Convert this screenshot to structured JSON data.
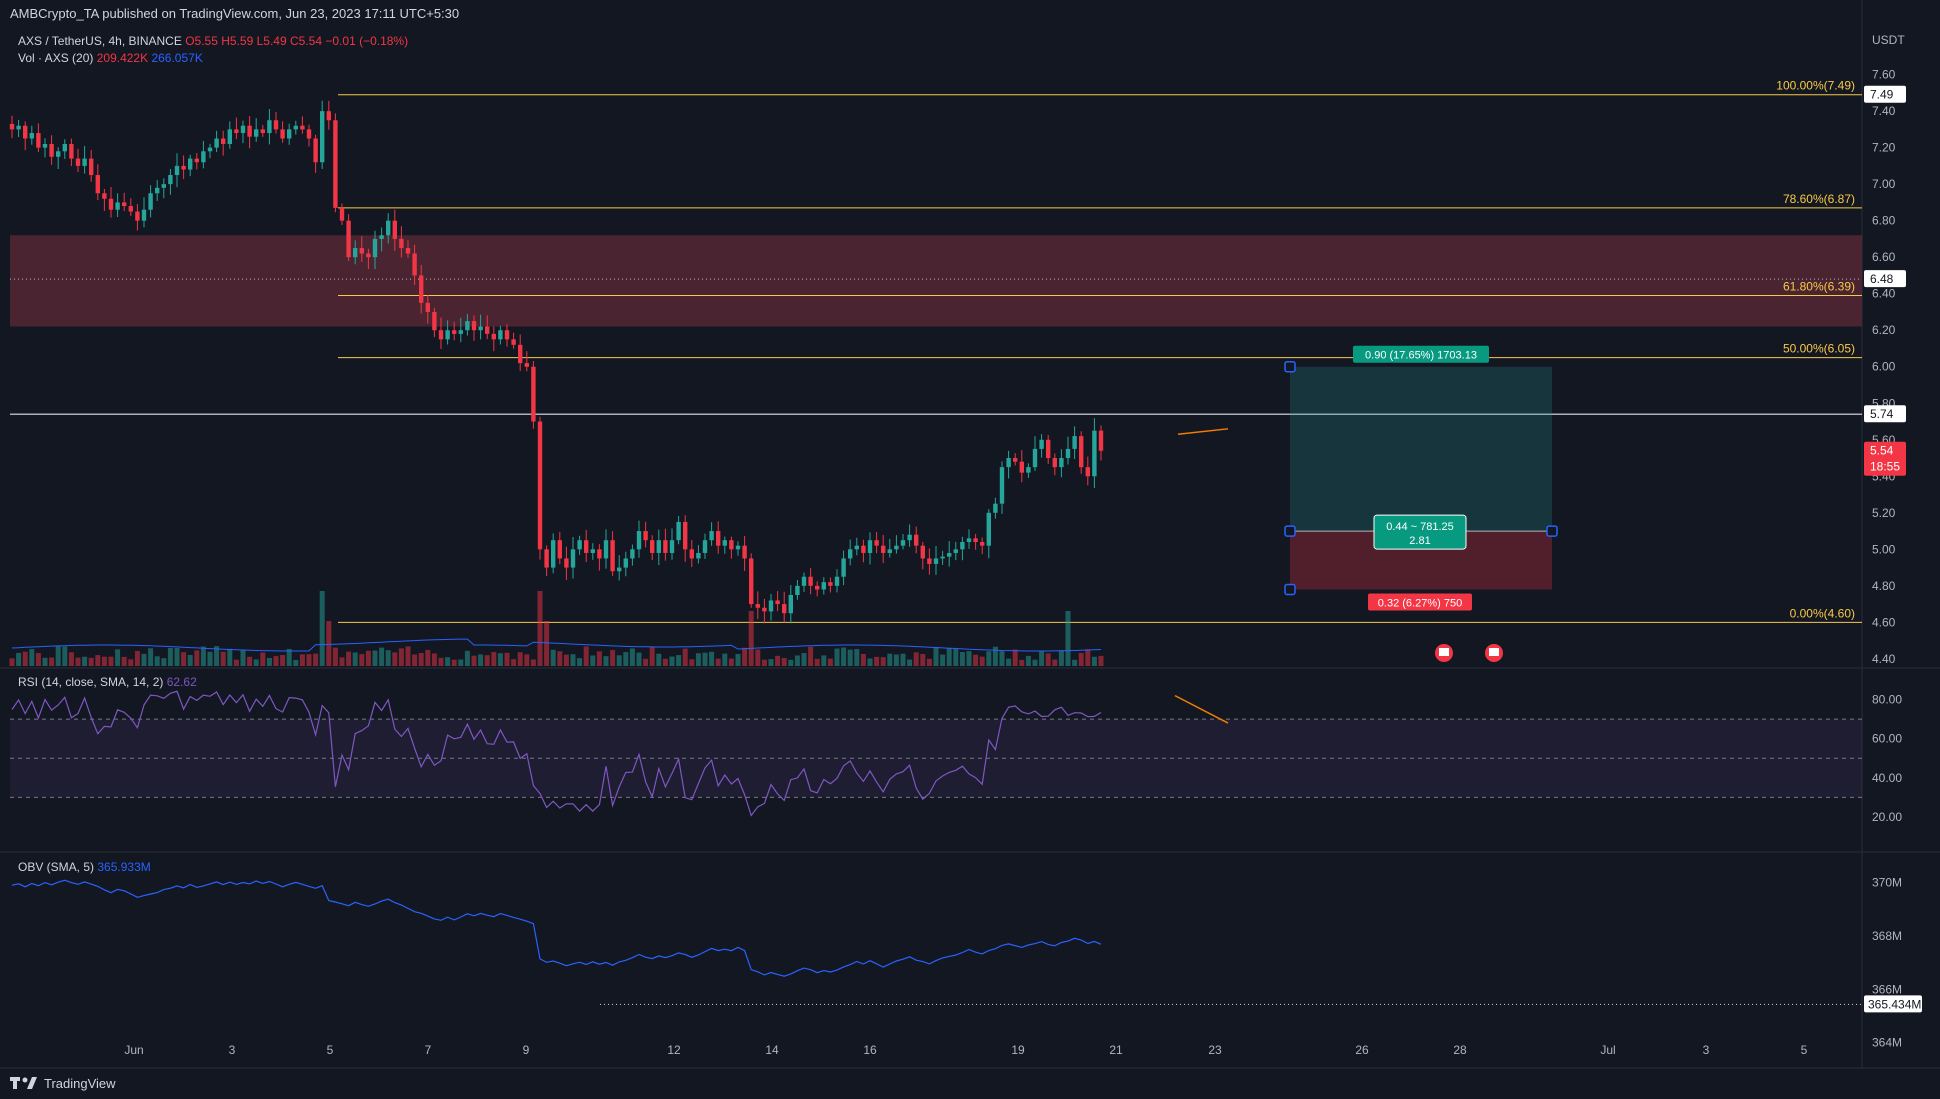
{
  "header": {
    "published": "AMBCrypto_TA published on TradingView.com, Jun 23, 2023 17:11 UTC+5:30"
  },
  "legend": {
    "symbol": "AXS / TetherUS, 4h, BINANCE",
    "open": "O5.55",
    "high": "H5.59",
    "low": "L5.49",
    "close": "C5.54",
    "change": "−0.01 (−0.18%)",
    "volume_label": "Vol · AXS (20)",
    "volume_value": "209.422K",
    "volume_ma": "266.057K",
    "rsi_label": "RSI (14, close, SMA, 14, 2)",
    "rsi_value": "62.62",
    "obv_label": "OBV (SMA, 5)",
    "obv_value": "365.933M"
  },
  "currency": "USDT",
  "price_axis": [
    "7.60",
    "7.40",
    "7.20",
    "7.00",
    "6.80",
    "6.60",
    "6.40",
    "6.20",
    "6.00",
    "5.80",
    "5.60",
    "5.40",
    "5.20",
    "5.00",
    "4.80",
    "4.60",
    "4.40"
  ],
  "price_tags": {
    "high_line": "7.49",
    "zone_mid": "6.48",
    "level": "5.74",
    "last": "5.54",
    "countdown": "18:55"
  },
  "fib": [
    {
      "label": "100.00%(7.49)",
      "price": 7.49
    },
    {
      "label": "78.60%(6.87)",
      "price": 6.87
    },
    {
      "label": "61.80%(6.39)",
      "price": 6.39
    },
    {
      "label": "50.00%(6.05)",
      "price": 6.05
    },
    {
      "label": "0.00%(4.60)",
      "price": 4.6
    }
  ],
  "position": {
    "target_label": "0.90 (17.65%) 1703.13",
    "entry_label_1": "0.44 ~ 781.25",
    "entry_label_2": "2.81",
    "stop_label": "0.32 (6.27%) 750",
    "target_price": 6.0,
    "entry_price": 5.1,
    "stop_price": 4.78
  },
  "rsi_axis": [
    "80.00",
    "60.00",
    "40.00",
    "20.00"
  ],
  "obv_axis": [
    "370M",
    "368M",
    "366M",
    "364M"
  ],
  "obv_tag": "365.434M",
  "time_axis": [
    "Jun",
    "3",
    "5",
    "7",
    "9",
    "12",
    "14",
    "16",
    "19",
    "21",
    "23",
    "26",
    "28",
    "Jul",
    "3",
    "5"
  ],
  "footer": {
    "brand": "TradingView"
  },
  "colors": {
    "background": "#131722",
    "up": "#26a69a",
    "down": "#f23645",
    "fib": "#f7c948",
    "zone": "#5d2a36",
    "rsi": "#7e57c2",
    "obv": "#2962ff"
  },
  "chart_data": {
    "type": "candlestick",
    "closes": [
      7.3,
      7.32,
      7.25,
      7.28,
      7.2,
      7.22,
      7.15,
      7.18,
      7.22,
      7.14,
      7.1,
      7.14,
      7.05,
      6.95,
      6.92,
      6.86,
      6.9,
      6.88,
      6.85,
      6.8,
      6.86,
      6.95,
      6.98,
      7.0,
      7.05,
      7.1,
      7.08,
      7.14,
      7.12,
      7.18,
      7.2,
      7.25,
      7.22,
      7.3,
      7.28,
      7.32,
      7.26,
      7.3,
      7.28,
      7.35,
      7.3,
      7.25,
      7.3,
      7.32,
      7.3,
      7.25,
      7.12,
      7.4,
      7.35,
      6.87,
      6.8,
      6.6,
      6.65,
      6.62,
      6.6,
      6.7,
      6.72,
      6.8,
      6.7,
      6.65,
      6.62,
      6.5,
      6.35,
      6.3,
      6.2,
      6.15,
      6.2,
      6.18,
      6.2,
      6.25,
      6.2,
      6.22,
      6.18,
      6.15,
      6.2,
      6.15,
      6.12,
      6.02,
      6.0,
      5.7,
      5.0,
      4.9,
      5.05,
      4.95,
      4.9,
      5.0,
      5.05,
      4.98,
      5.0,
      4.95,
      5.05,
      4.88,
      4.9,
      4.95,
      5.0,
      5.1,
      5.05,
      4.98,
      5.05,
      4.98,
      5.05,
      5.15,
      5.0,
      4.95,
      4.98,
      5.05,
      5.1,
      5.02,
      5.05,
      5.0,
      5.02,
      4.95,
      4.7,
      4.68,
      4.66,
      4.72,
      4.7,
      4.65,
      4.75,
      4.8,
      4.85,
      4.8,
      4.78,
      4.82,
      4.8,
      4.85,
      4.95,
      5.0,
      5.02,
      4.98,
      5.05,
      5.02,
      4.98,
      5.0,
      5.02,
      5.05,
      5.08,
      5.02,
      4.95,
      4.92,
      4.95,
      4.96,
      4.98,
      5.0,
      5.04,
      5.06,
      5.04,
      5.02,
      5.2,
      5.25,
      5.45,
      5.5,
      5.48,
      5.42,
      5.45,
      5.55,
      5.6,
      5.5,
      5.45,
      5.5,
      5.55,
      5.62,
      5.45,
      5.4,
      5.65,
      5.54
    ],
    "volume_ma_value": "266.057K",
    "rsi_last": 62.62,
    "obv_last": "365.933M",
    "ylim": [
      4.35,
      7.68
    ]
  }
}
